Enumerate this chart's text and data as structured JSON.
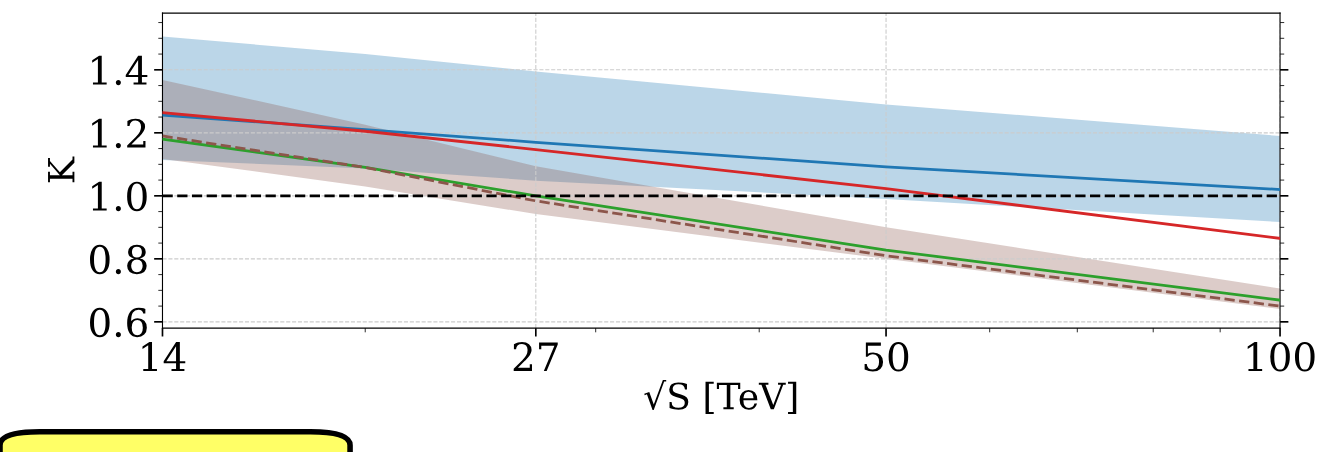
{
  "chart_data": {
    "type": "line",
    "xlabel": "√S [TeV]",
    "ylabel": "K",
    "log": "x",
    "x": [
      14,
      20,
      27,
      50,
      100
    ],
    "xlim": [
      14,
      100
    ],
    "xticks": [
      14,
      27,
      50,
      100
    ],
    "ylim": [
      0.58,
      1.58
    ],
    "yticks": [
      {
        "value": 0.6,
        "label": "0.6"
      },
      {
        "value": 0.8,
        "label": "0.8"
      },
      {
        "value": 1.0,
        "label": "1.0"
      },
      {
        "value": 1.2,
        "label": "1.2"
      },
      {
        "value": 1.4,
        "label": "1.4"
      }
    ],
    "grid": true,
    "line_style": "solid",
    "ref_lines": [
      {
        "axis": "y",
        "value": 1.0,
        "color": "#000000",
        "line_style": "dashed"
      }
    ],
    "series": [
      {
        "color": "#1f77b4",
        "values": [
          1.256,
          1.21,
          1.17,
          1.092,
          1.02
        ],
        "lower": [
          1.114,
          1.087,
          1.048,
          0.99,
          0.917
        ],
        "upper": [
          1.506,
          1.45,
          1.395,
          1.29,
          1.19
        ]
      },
      {
        "color": "#d62728",
        "values": [
          1.264,
          1.205,
          1.147,
          1.023,
          0.865
        ]
      },
      {
        "color": "#2ca02c",
        "values": [
          1.18,
          1.09,
          1.0,
          0.828,
          0.669
        ]
      },
      {
        "color": "#8c564b",
        "line_style": "dashed",
        "values": [
          1.19,
          1.09,
          0.984,
          0.81,
          0.65
        ],
        "lower": [
          1.117,
          1.03,
          0.942,
          0.8,
          0.641
        ],
        "upper": [
          1.368,
          1.226,
          1.094,
          0.9,
          0.706
        ]
      }
    ]
  }
}
